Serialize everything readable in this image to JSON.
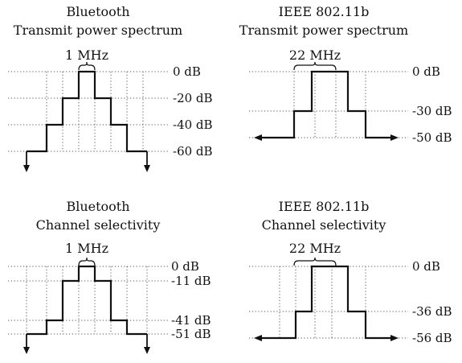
{
  "panels": [
    {
      "title_line1": "Bluetooth",
      "title_line2": "Transmit power spectrum",
      "bandwidth_label": "1 MHz",
      "levels": [
        "0 dB",
        "-20 dB",
        "-40 dB",
        "-60 dB"
      ]
    },
    {
      "title_line1": "IEEE 802.11b",
      "title_line2": "Transmit power spectrum",
      "bandwidth_label": "22 MHz",
      "levels": [
        "0 dB",
        "-30 dB",
        "-50 dB"
      ]
    },
    {
      "title_line1": "Bluetooth",
      "title_line2": "Channel selectivity",
      "bandwidth_label": "1 MHz",
      "levels": [
        "0 dB",
        "-11 dB",
        "-41 dB",
        "-51 dB"
      ]
    },
    {
      "title_line1": "IEEE 802.11b",
      "title_line2": "Channel selectivity",
      "bandwidth_label": "22 MHz",
      "levels": [
        "0 dB",
        "-36 dB",
        "-56 dB"
      ]
    }
  ]
}
